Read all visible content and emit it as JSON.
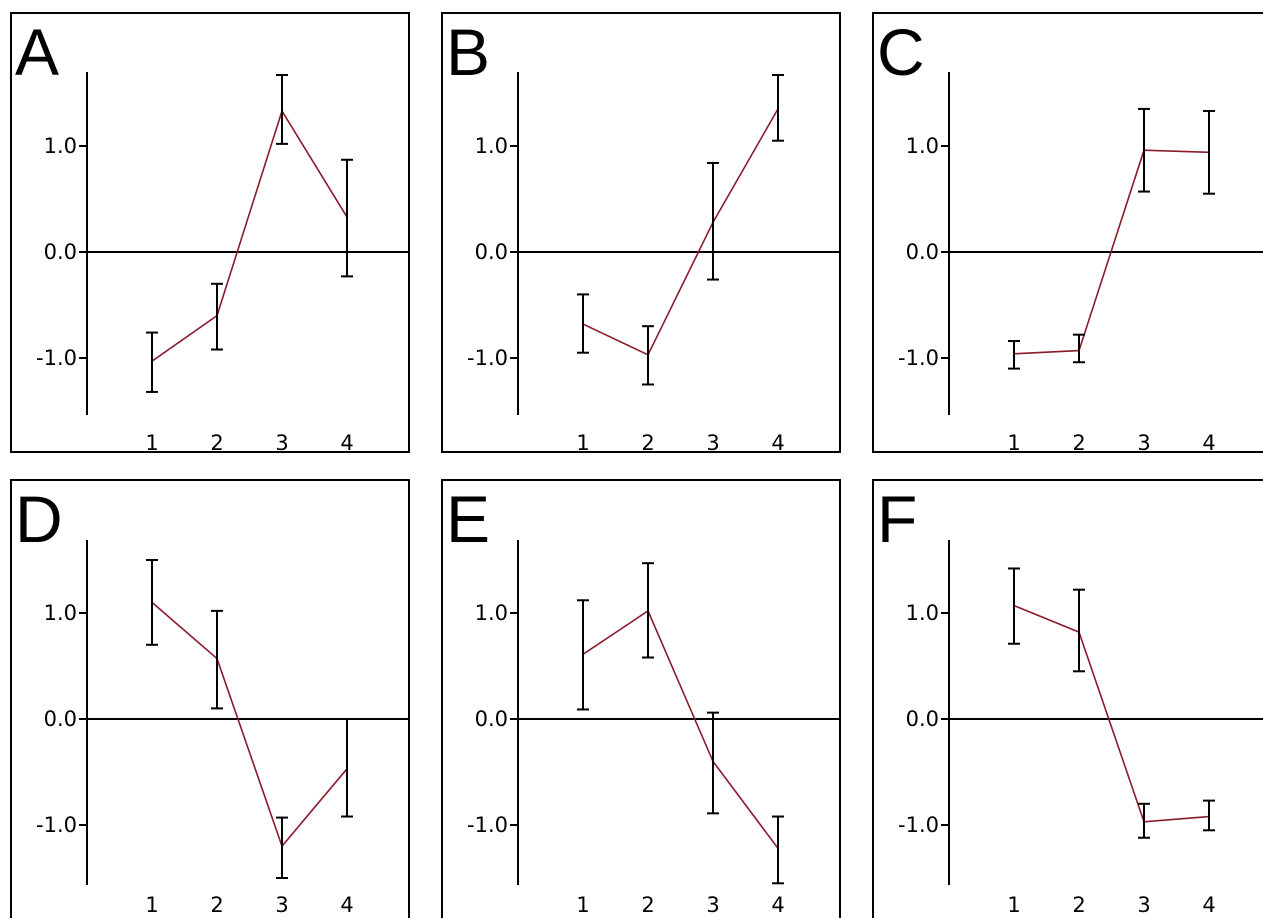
{
  "chart_data": [
    {
      "type": "line",
      "panel_label": "A",
      "categories": [
        "1",
        "2",
        "3",
        "4"
      ],
      "values": [
        -1.03,
        -0.6,
        1.33,
        0.33
      ],
      "error_low": [
        -1.32,
        -0.92,
        1.02,
        -0.23
      ],
      "error_high": [
        -0.76,
        -0.3,
        1.67,
        0.87
      ],
      "ylim": [
        -1.55,
        1.68
      ],
      "yticks": [
        "1.0",
        "0.0",
        "-1.0"
      ]
    },
    {
      "type": "line",
      "panel_label": "B",
      "categories": [
        "1",
        "2",
        "3",
        "4"
      ],
      "values": [
        -0.68,
        -0.97,
        0.28,
        1.35
      ],
      "error_low": [
        -0.95,
        -1.25,
        -0.26,
        1.05
      ],
      "error_high": [
        -0.4,
        -0.7,
        0.84,
        1.67
      ],
      "ylim": [
        -1.55,
        1.68
      ],
      "yticks": [
        "1.0",
        "0.0",
        "-1.0"
      ]
    },
    {
      "type": "line",
      "panel_label": "C",
      "categories": [
        "1",
        "2",
        "3",
        "4"
      ],
      "values": [
        -0.96,
        -0.93,
        0.96,
        0.94
      ],
      "error_low": [
        -1.1,
        -1.04,
        0.57,
        0.55
      ],
      "error_high": [
        -0.84,
        -0.78,
        1.35,
        1.33
      ],
      "ylim": [
        -1.55,
        1.68
      ],
      "yticks": [
        "1.0",
        "0.0",
        "-1.0"
      ]
    },
    {
      "type": "line",
      "panel_label": "D",
      "categories": [
        "1",
        "2",
        "3",
        "4"
      ],
      "values": [
        1.1,
        0.57,
        -1.2,
        -0.47
      ],
      "error_low": [
        0.7,
        0.1,
        -1.5,
        -0.92
      ],
      "error_high": [
        1.5,
        1.02,
        -0.93,
        0.0
      ],
      "ylim": [
        -1.55,
        1.68
      ],
      "yticks": [
        "1.0",
        "0.0",
        "-1.0"
      ]
    },
    {
      "type": "line",
      "panel_label": "E",
      "categories": [
        "1",
        "2",
        "3",
        "4"
      ],
      "values": [
        0.61,
        1.02,
        -0.4,
        -1.22
      ],
      "error_low": [
        0.09,
        0.58,
        -0.89,
        -1.55
      ],
      "error_high": [
        1.12,
        1.47,
        0.06,
        -0.92
      ],
      "ylim": [
        -1.55,
        1.68
      ],
      "yticks": [
        "1.0",
        "0.0",
        "-1.0"
      ]
    },
    {
      "type": "line",
      "panel_label": "F",
      "categories": [
        "1",
        "2",
        "3",
        "4"
      ],
      "values": [
        1.07,
        0.82,
        -0.97,
        -0.92
      ],
      "error_low": [
        0.71,
        0.45,
        -1.12,
        -1.05
      ],
      "error_high": [
        1.42,
        1.22,
        -0.8,
        -0.77
      ],
      "ylim": [
        -1.55,
        1.68
      ],
      "yticks": [
        "1.0",
        "0.0",
        "-1.0"
      ]
    }
  ],
  "colors": {
    "series_line": "#8b1a2b",
    "error_bars": "#000000",
    "axes": "#000000",
    "background": "#ffffff"
  }
}
